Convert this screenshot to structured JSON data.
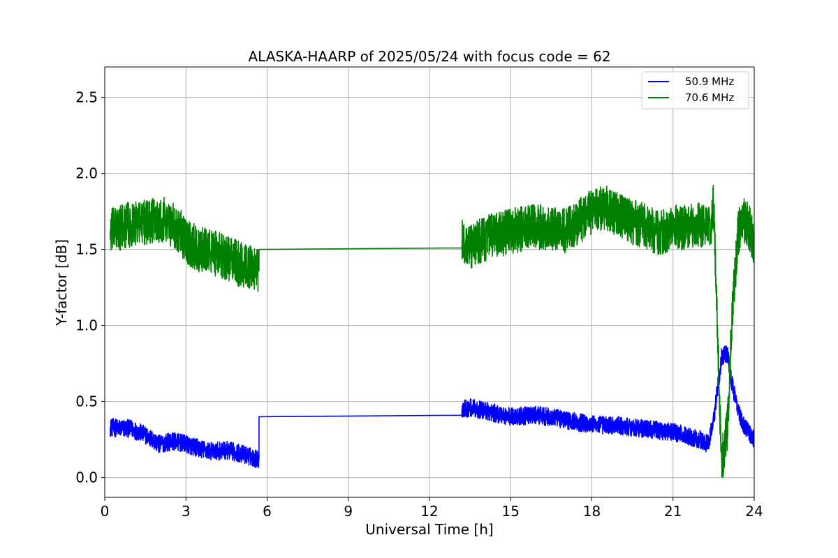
{
  "chart_data": {
    "type": "line",
    "title": "ALASKA-HAARP of 2025/05/24 with focus code = 62",
    "xlabel": "Universal Time [h]",
    "ylabel": "Y-factor [dB]",
    "xlim": [
      0,
      24
    ],
    "ylim": [
      -0.13,
      2.7
    ],
    "xticks": [
      0,
      3,
      6,
      9,
      12,
      15,
      18,
      21,
      24
    ],
    "yticks": [
      0.0,
      0.5,
      1.0,
      1.5,
      2.0,
      2.5
    ],
    "ytick_labels": [
      "0.0",
      "0.5",
      "1.0",
      "1.5",
      "2.0",
      "2.5"
    ],
    "grid": true,
    "legend_position": "top-right",
    "series": [
      {
        "name": "50.9 MHz",
        "color": "#0000ff",
        "points": [
          [
            0.2,
            0.33
          ],
          [
            1.0,
            0.32
          ],
          [
            1.5,
            0.28
          ],
          [
            2.0,
            0.22
          ],
          [
            2.5,
            0.24
          ],
          [
            3.0,
            0.22
          ],
          [
            3.5,
            0.19
          ],
          [
            4.0,
            0.17
          ],
          [
            4.5,
            0.18
          ],
          [
            5.0,
            0.16
          ],
          [
            5.5,
            0.13
          ],
          [
            5.7,
            0.12
          ],
          [
            5.7,
            0.4
          ],
          [
            13.2,
            0.41
          ],
          [
            13.2,
            0.45
          ],
          [
            13.5,
            0.46
          ],
          [
            14.0,
            0.44
          ],
          [
            15.0,
            0.4
          ],
          [
            16.0,
            0.41
          ],
          [
            17.0,
            0.38
          ],
          [
            18.0,
            0.35
          ],
          [
            19.0,
            0.34
          ],
          [
            20.0,
            0.32
          ],
          [
            21.0,
            0.3
          ],
          [
            22.0,
            0.25
          ],
          [
            22.3,
            0.22
          ],
          [
            22.5,
            0.38
          ],
          [
            22.8,
            0.8
          ],
          [
            23.0,
            0.82
          ],
          [
            23.2,
            0.6
          ],
          [
            23.4,
            0.45
          ],
          [
            23.6,
            0.35
          ],
          [
            23.8,
            0.3
          ],
          [
            24.0,
            0.25
          ]
        ],
        "noise_amplitude": 0.06
      },
      {
        "name": "70.6 MHz",
        "color": "#008000",
        "points": [
          [
            0.2,
            1.62
          ],
          [
            0.8,
            1.66
          ],
          [
            1.5,
            1.68
          ],
          [
            2.2,
            1.7
          ],
          [
            2.8,
            1.62
          ],
          [
            3.0,
            1.55
          ],
          [
            3.5,
            1.5
          ],
          [
            4.0,
            1.48
          ],
          [
            4.5,
            1.45
          ],
          [
            5.0,
            1.4
          ],
          [
            5.5,
            1.38
          ],
          [
            5.7,
            1.36
          ],
          [
            5.7,
            1.5
          ],
          [
            13.2,
            1.51
          ],
          [
            13.2,
            1.55
          ],
          [
            13.5,
            1.52
          ],
          [
            14.0,
            1.57
          ],
          [
            15.0,
            1.62
          ],
          [
            16.0,
            1.65
          ],
          [
            17.0,
            1.62
          ],
          [
            17.5,
            1.68
          ],
          [
            18.0,
            1.75
          ],
          [
            18.5,
            1.78
          ],
          [
            19.0,
            1.72
          ],
          [
            19.5,
            1.68
          ],
          [
            20.0,
            1.65
          ],
          [
            20.5,
            1.6
          ],
          [
            21.0,
            1.65
          ],
          [
            21.5,
            1.64
          ],
          [
            22.0,
            1.66
          ],
          [
            22.4,
            1.62
          ],
          [
            22.5,
            1.8
          ],
          [
            22.7,
            0.6
          ],
          [
            22.8,
            0.1
          ],
          [
            23.0,
            0.3
          ],
          [
            23.2,
            1.1
          ],
          [
            23.4,
            1.6
          ],
          [
            23.6,
            1.7
          ],
          [
            23.8,
            1.65
          ],
          [
            24.0,
            1.55
          ]
        ],
        "noise_amplitude": 0.15
      }
    ]
  }
}
